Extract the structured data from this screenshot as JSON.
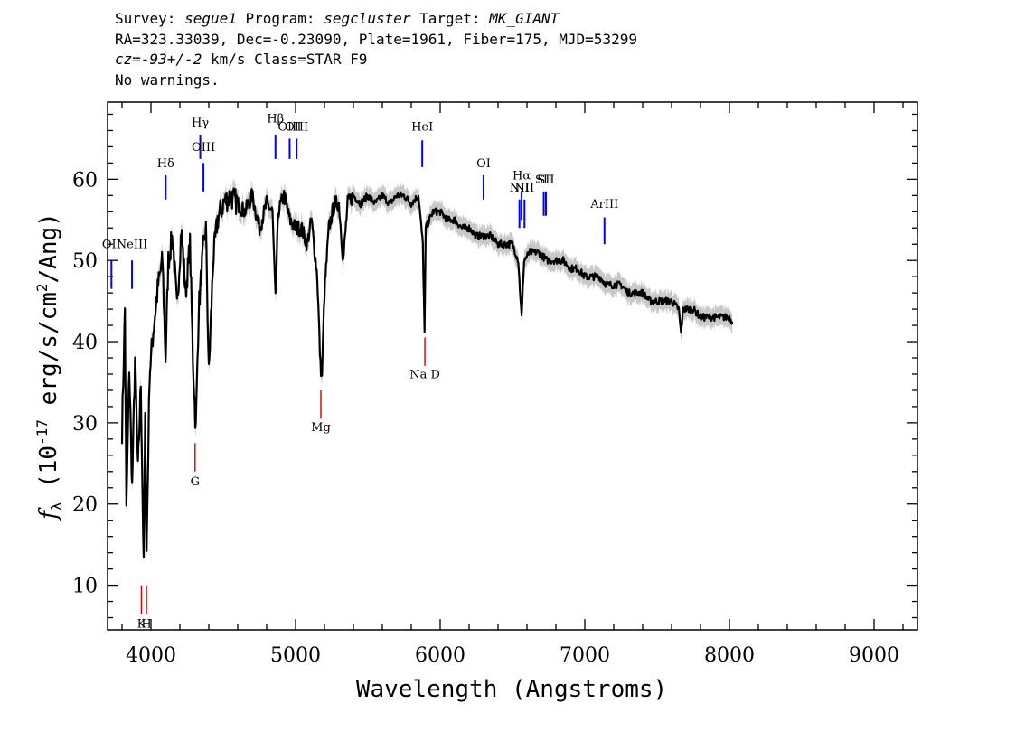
{
  "header": {
    "l1_a": "Survey: ",
    "l1_survey": "segue1",
    "l1_b": " Program: ",
    "l1_program": "segcluster",
    "l1_c": " Target: ",
    "l1_target": "MK_GIANT",
    "l2": "RA=323.33039, Dec=-0.23090, Plate=1961, Fiber=175, MJD=53299",
    "l3_cz": "cz=-93+/-2",
    "l3_rest": " km/s Class=STAR F9",
    "l4": "No warnings."
  },
  "chart_data": {
    "type": "line",
    "xlabel": "Wavelength (Angstroms)",
    "ylabel_main": "f",
    "ylabel_sub": "λ",
    "ylabel_rest": " (10",
    "ylabel_exp": "-17",
    "ylabel_tail": " erg/s/cm",
    "ylabel_exp2": "2",
    "ylabel_end": "/Ang)",
    "xlim": [
      3700,
      9300
    ],
    "ylim": [
      4.5,
      69.5
    ],
    "x_ticks": [
      4000,
      5000,
      6000,
      7000,
      8000,
      9000
    ],
    "x_tick_labels": [
      "4000",
      "5000",
      "6000",
      "7000",
      "8000",
      "9000"
    ],
    "y_ticks": [
      10,
      20,
      30,
      40,
      50,
      60
    ],
    "y_tick_labels": [
      "10",
      "20",
      "30",
      "40",
      "50",
      "60"
    ],
    "x_minor_step": 200,
    "y_minor_step": 2,
    "colors": {
      "flux": "#000000",
      "error": "#c8c8c8",
      "emission": "#0000ff",
      "absorption": "#cc0000"
    },
    "spectrum": [
      [
        3800,
        29
      ],
      [
        3820,
        44
      ],
      [
        3830,
        19
      ],
      [
        3850,
        37
      ],
      [
        3870,
        22
      ],
      [
        3890,
        38
      ],
      [
        3910,
        24
      ],
      [
        3930,
        35
      ],
      [
        3950,
        12
      ],
      [
        3960,
        30
      ],
      [
        3970,
        14
      ],
      [
        3990,
        36
      ],
      [
        4020,
        42
      ],
      [
        4050,
        47
      ],
      [
        4080,
        50
      ],
      [
        4101,
        38
      ],
      [
        4120,
        50
      ],
      [
        4150,
        53
      ],
      [
        4180,
        44
      ],
      [
        4210,
        54
      ],
      [
        4240,
        46
      ],
      [
        4270,
        52
      ],
      [
        4290,
        38
      ],
      [
        4310,
        29
      ],
      [
        4330,
        44
      ],
      [
        4360,
        51
      ],
      [
        4380,
        54
      ],
      [
        4400,
        36
      ],
      [
        4430,
        50
      ],
      [
        4460,
        55
      ],
      [
        4500,
        57
      ],
      [
        4550,
        58
      ],
      [
        4600,
        57
      ],
      [
        4650,
        56
      ],
      [
        4700,
        58
      ],
      [
        4750,
        54
      ],
      [
        4800,
        57
      ],
      [
        4840,
        56
      ],
      [
        4861,
        45
      ],
      [
        4880,
        56
      ],
      [
        4920,
        58
      ],
      [
        4960,
        55
      ],
      [
        5000,
        54
      ],
      [
        5040,
        54
      ],
      [
        5080,
        52
      ],
      [
        5110,
        55
      ],
      [
        5150,
        48
      ],
      [
        5172,
        37
      ],
      [
        5183,
        36
      ],
      [
        5200,
        46
      ],
      [
        5230,
        54
      ],
      [
        5270,
        57
      ],
      [
        5300,
        57
      ],
      [
        5330,
        50
      ],
      [
        5360,
        57
      ],
      [
        5400,
        58
      ],
      [
        5450,
        57
      ],
      [
        5500,
        58
      ],
      [
        5550,
        57
      ],
      [
        5600,
        58
      ],
      [
        5650,
        57
      ],
      [
        5700,
        58
      ],
      [
        5750,
        58
      ],
      [
        5800,
        57
      ],
      [
        5850,
        58
      ],
      [
        5880,
        52
      ],
      [
        5892,
        41
      ],
      [
        5900,
        54
      ],
      [
        5950,
        56
      ],
      [
        6000,
        56
      ],
      [
        6050,
        55
      ],
      [
        6100,
        55
      ],
      [
        6150,
        54
      ],
      [
        6200,
        54
      ],
      [
        6250,
        53
      ],
      [
        6300,
        53
      ],
      [
        6350,
        53
      ],
      [
        6400,
        52
      ],
      [
        6450,
        52
      ],
      [
        6500,
        52
      ],
      [
        6540,
        50
      ],
      [
        6563,
        43
      ],
      [
        6580,
        50
      ],
      [
        6620,
        51
      ],
      [
        6680,
        51
      ],
      [
        6740,
        50
      ],
      [
        6800,
        50
      ],
      [
        6850,
        50
      ],
      [
        6900,
        49
      ],
      [
        6950,
        49
      ],
      [
        7000,
        48
      ],
      [
        7050,
        48
      ],
      [
        7100,
        48
      ],
      [
        7150,
        47
      ],
      [
        7200,
        47
      ],
      [
        7250,
        47
      ],
      [
        7300,
        46
      ],
      [
        7350,
        46
      ],
      [
        7400,
        46
      ],
      [
        7450,
        45
      ],
      [
        7500,
        45
      ],
      [
        7550,
        45
      ],
      [
        7600,
        45
      ],
      [
        7650,
        44
      ],
      [
        7665,
        41
      ],
      [
        7680,
        44
      ],
      [
        7700,
        44
      ],
      [
        7750,
        44
      ],
      [
        7800,
        43
      ],
      [
        7850,
        43
      ],
      [
        7900,
        43
      ],
      [
        7950,
        43
      ],
      [
        8000,
        43
      ],
      [
        8020,
        42.5
      ]
    ],
    "emission_lines": [
      {
        "label": "OII",
        "wave": 3727,
        "y_label": 51.5,
        "y_line": [
          46.5,
          50
        ]
      },
      {
        "label": "NeIII",
        "wave": 3869,
        "y_label": 51.5,
        "y_line": [
          46.5,
          50
        ]
      },
      {
        "label": "Hδ",
        "wave": 4102,
        "y_label": 61.5,
        "y_line": [
          57.5,
          60.5
        ]
      },
      {
        "label": "Hγ",
        "wave": 4341,
        "y_label": 66.5,
        "y_line": [
          62.5,
          65.5
        ]
      },
      {
        "label": "OIII",
        "wave": 4363,
        "y_label": 63.5,
        "y_line": [
          58.5,
          62
        ]
      },
      {
        "label": "Hβ",
        "wave": 4861,
        "y_label": 67,
        "y_line": [
          62.5,
          65.5
        ]
      },
      {
        "label": "OIII",
        "wave": 4959,
        "y_label": 66,
        "y_line": [
          62.5,
          65
        ]
      },
      {
        "label": "OIII",
        "wave": 5007,
        "y_label": 66,
        "y_line": [
          62.5,
          65
        ]
      },
      {
        "label": "HeI",
        "wave": 5876,
        "y_label": 66,
        "y_line": [
          61.5,
          64.8
        ]
      },
      {
        "label": "OI",
        "wave": 6300,
        "y_label": 61.5,
        "y_line": [
          57.5,
          60.5
        ]
      },
      {
        "label": "NII",
        "wave": 6548,
        "y_label": 58.5,
        "y_line": [
          54,
          57.5
        ]
      },
      {
        "label": "Hα",
        "wave": 6563,
        "y_label": 60,
        "y_line": [
          55,
          58.5
        ]
      },
      {
        "label": "NII",
        "wave": 6583,
        "y_label": 58.5,
        "y_line": [
          54,
          57.5
        ]
      },
      {
        "label": "SII",
        "wave": 6716,
        "y_label": 59.5,
        "y_line": [
          55.5,
          58.5
        ]
      },
      {
        "label": "SII",
        "wave": 6731,
        "y_label": 59.5,
        "y_line": [
          55.5,
          58.5
        ]
      },
      {
        "label": "ArIII",
        "wave": 7136,
        "y_label": 56.5,
        "y_line": [
          52,
          55.3
        ]
      }
    ],
    "absorption_lines": [
      {
        "label": "K",
        "wave": 3934,
        "y_label": 4.8,
        "y_line": [
          6.5,
          10
        ]
      },
      {
        "label": "H",
        "wave": 3969,
        "y_label": 4.8,
        "y_line": [
          6.5,
          10
        ]
      },
      {
        "label": "G",
        "wave": 4305,
        "y_label": 22.3,
        "y_line": [
          24,
          27.5
        ]
      },
      {
        "label": "Mg",
        "wave": 5175,
        "y_label": 29,
        "y_line": [
          30.5,
          34
        ]
      },
      {
        "label": "Na D",
        "wave": 5894,
        "y_label": 35.5,
        "y_line": [
          37,
          40.5
        ]
      }
    ]
  }
}
